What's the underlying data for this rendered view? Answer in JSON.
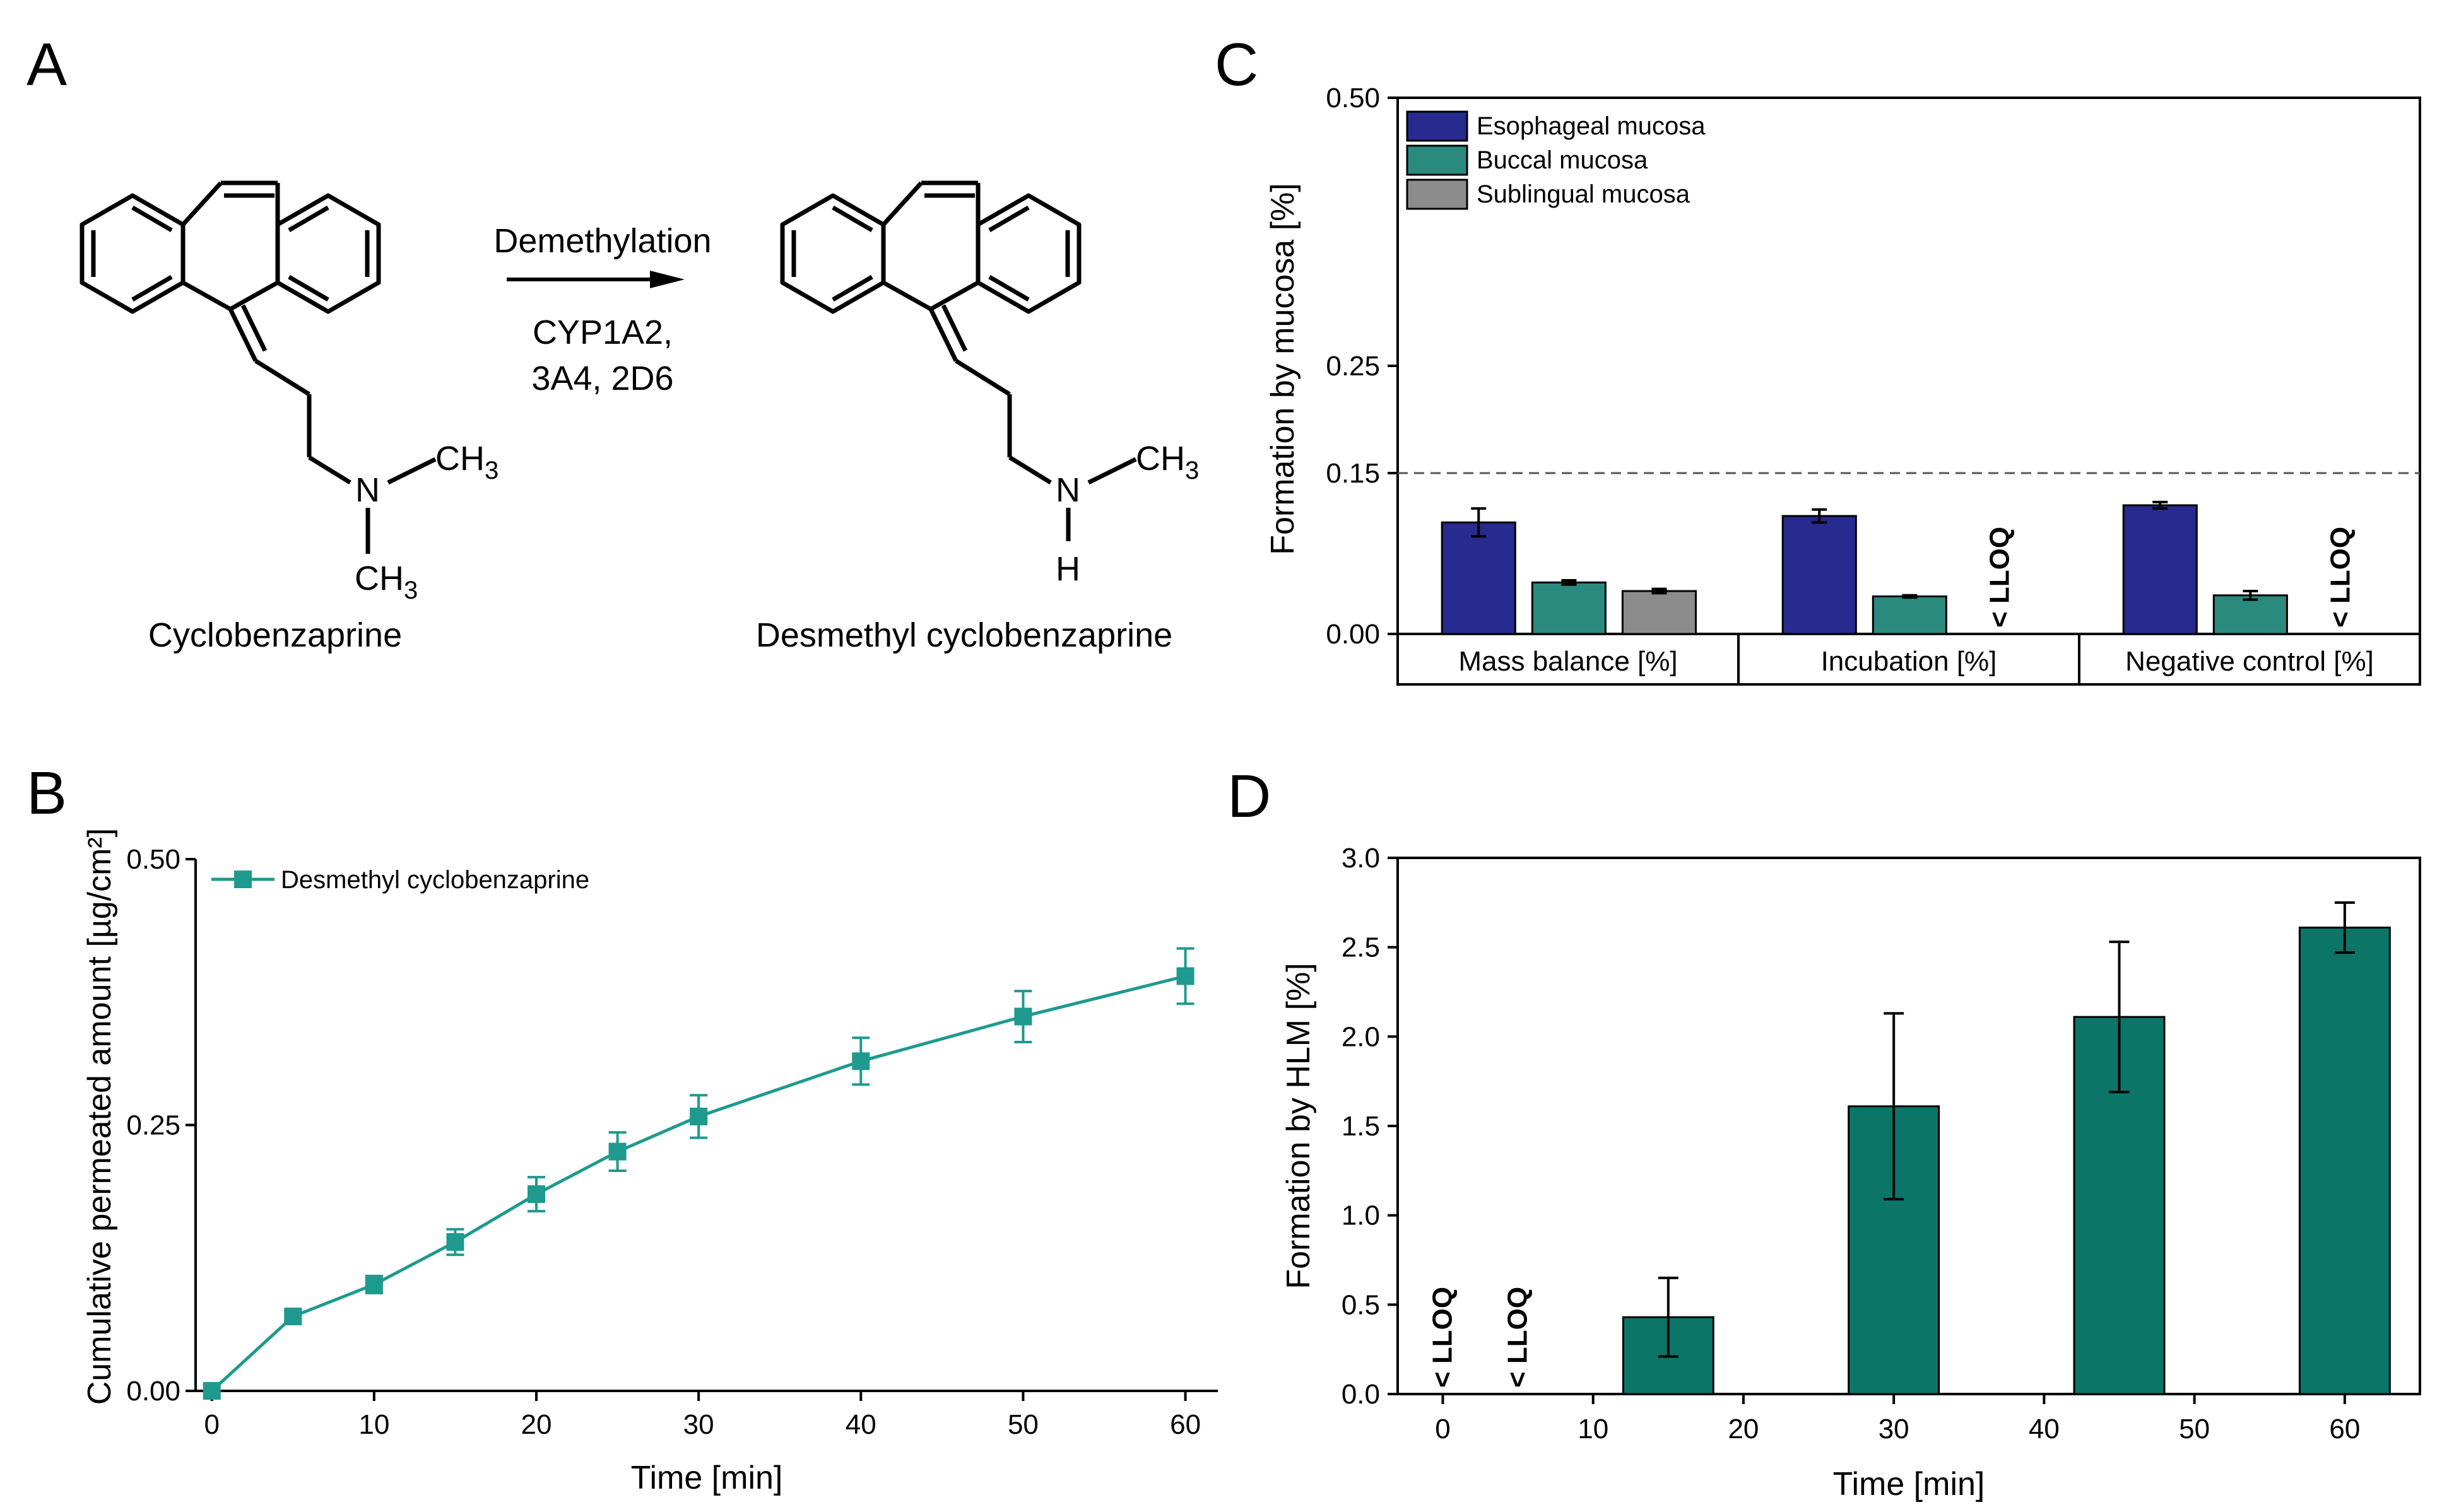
{
  "panel_labels": [
    "A",
    "B",
    "C",
    "D"
  ],
  "scheme": {
    "reactant_name": "Cyclobenzaprine",
    "product_name": "Desmethyl cyclobenzaprine",
    "reaction": "Demethylation",
    "enzymes_line1": "CYP1A2,",
    "enzymes_line2": "3A4, 2D6",
    "atom_N": "N",
    "atom_H": "H",
    "group_ch": "CH",
    "subscript_3": "3"
  },
  "chart_data": [
    {
      "id": "B",
      "type": "line",
      "xlabel": "Time [min]",
      "ylabel": "Cumulative permeated amount [µg/cm²]",
      "xlim": [
        -1,
        62
      ],
      "ylim": [
        0,
        0.5
      ],
      "xticks": [
        "0",
        "10",
        "20",
        "30",
        "40",
        "50",
        "60"
      ],
      "yticks": [
        "0.00",
        "0.25",
        "0.50"
      ],
      "legend_position": "top-left",
      "color": "#1e9a8e",
      "series": [
        {
          "name": "Desmethyl cyclobenzaprine",
          "x": [
            0,
            5,
            10,
            15,
            20,
            25,
            30,
            40,
            50,
            60
          ],
          "y": [
            0.0,
            0.07,
            0.1,
            0.14,
            0.185,
            0.225,
            0.258,
            0.31,
            0.352,
            0.39
          ],
          "err": [
            0.0,
            0.004,
            0.008,
            0.012,
            0.016,
            0.018,
            0.02,
            0.022,
            0.024,
            0.026
          ]
        }
      ]
    },
    {
      "id": "C",
      "type": "bar",
      "ylabel": "Formation by mucosa [%]",
      "ylim": [
        0,
        0.5
      ],
      "yticks": [
        "0.00",
        "0.15",
        "0.25",
        "0.50"
      ],
      "reference_line": 0.15,
      "categories": [
        "Mass balance [%]",
        "Incubation [%]",
        "Negative control [%]"
      ],
      "legend_position": "top-left",
      "below_lloq_label": "< LLOQ",
      "series": [
        {
          "name": "Esophageal mucosa",
          "color": "#272a8e",
          "values": [
            0.104,
            0.11,
            0.12
          ],
          "err": [
            0.013,
            0.006,
            0.003
          ],
          "lloq": [
            false,
            false,
            false
          ]
        },
        {
          "name": "Buccal mucosa",
          "color": "#2a8a7e",
          "values": [
            0.048,
            0.035,
            0.036
          ],
          "err": [
            0.002,
            0.001,
            0.004
          ],
          "lloq": [
            false,
            false,
            false
          ]
        },
        {
          "name": "Sublingual mucosa",
          "color": "#8c8c8c",
          "values": [
            0.04,
            null,
            null
          ],
          "err": [
            0.002,
            null,
            null
          ],
          "lloq": [
            false,
            true,
            true
          ]
        }
      ]
    },
    {
      "id": "D",
      "type": "bar",
      "xlabel": "Time [min]",
      "ylabel": "Formation by HLM [%]",
      "xlim": [
        -3,
        65
      ],
      "ylim": [
        0,
        3.0
      ],
      "xticks": [
        "0",
        "10",
        "20",
        "30",
        "40",
        "50",
        "60"
      ],
      "yticks": [
        "0.0",
        "0.5",
        "1.0",
        "1.5",
        "2.0",
        "2.5",
        "3.0"
      ],
      "color": "#0b7568",
      "below_lloq_label": "< LLOQ",
      "x": [
        0,
        5,
        15,
        30,
        45,
        60
      ],
      "values": [
        null,
        null,
        0.43,
        1.61,
        2.11,
        2.61
      ],
      "err": [
        null,
        null,
        0.22,
        0.52,
        0.42,
        0.14
      ],
      "lloq": [
        true,
        true,
        false,
        false,
        false,
        false
      ]
    }
  ]
}
